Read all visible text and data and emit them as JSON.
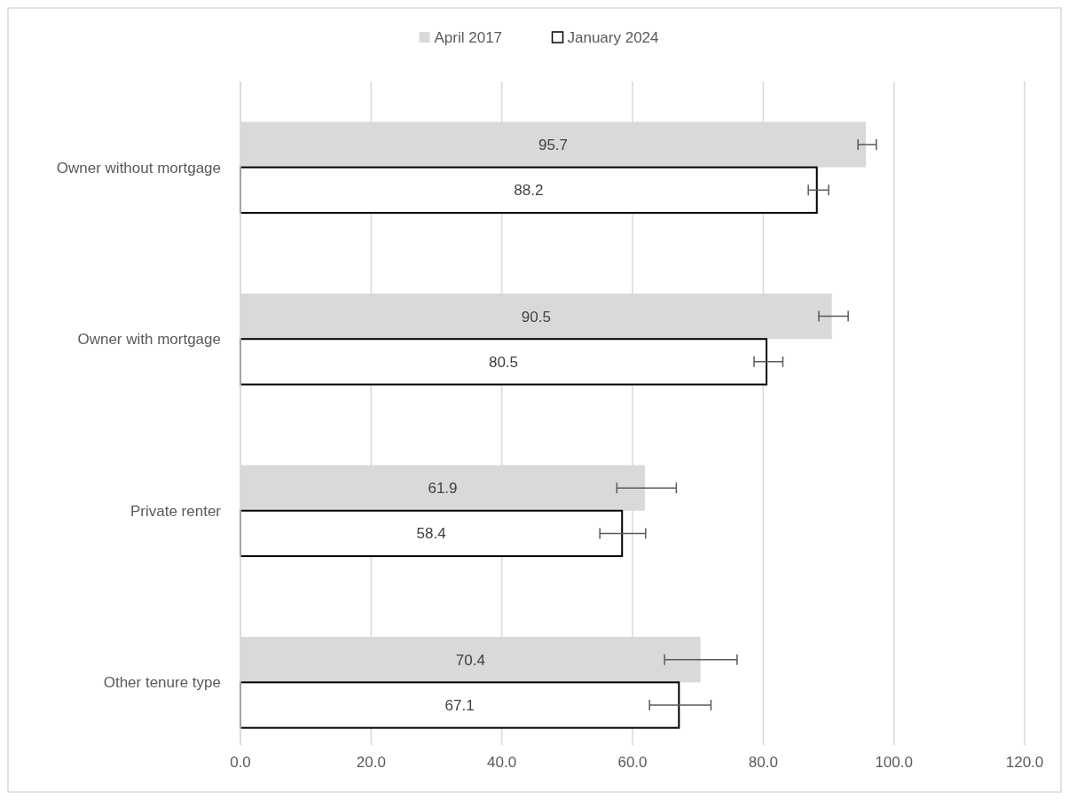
{
  "chart_data": {
    "type": "bar",
    "orientation": "horizontal",
    "categories": [
      "Owner without mortgage",
      "Owner with mortgage",
      "Private renter",
      "Other tenure type"
    ],
    "series": [
      {
        "name": "April 2017",
        "color": "#d9d9d9",
        "values": [
          95.7,
          90.5,
          61.9,
          70.4
        ],
        "errors": [
          [
            94.5,
            97.3
          ],
          [
            88.5,
            93.0
          ],
          [
            57.6,
            66.7
          ],
          [
            64.9,
            76.0
          ]
        ]
      },
      {
        "name": "January 2024",
        "color": "#ffffff",
        "values": [
          88.2,
          80.5,
          58.4,
          67.1
        ],
        "errors": [
          [
            86.9,
            90.0
          ],
          [
            78.6,
            83.0
          ],
          [
            55.0,
            62.0
          ],
          [
            62.6,
            72.0
          ]
        ]
      }
    ],
    "xlim": [
      0,
      120
    ],
    "xticks": [
      {
        "value": 0,
        "label": "0.0"
      },
      {
        "value": 20,
        "label": "20.0"
      },
      {
        "value": 40,
        "label": "40.0"
      },
      {
        "value": 60,
        "label": "60.0"
      },
      {
        "value": 80,
        "label": "80.0"
      },
      {
        "value": 100,
        "label": "100.0"
      },
      {
        "value": 120,
        "label": "120.0"
      }
    ],
    "grid": "x",
    "legend": "top",
    "data_labels": true
  }
}
